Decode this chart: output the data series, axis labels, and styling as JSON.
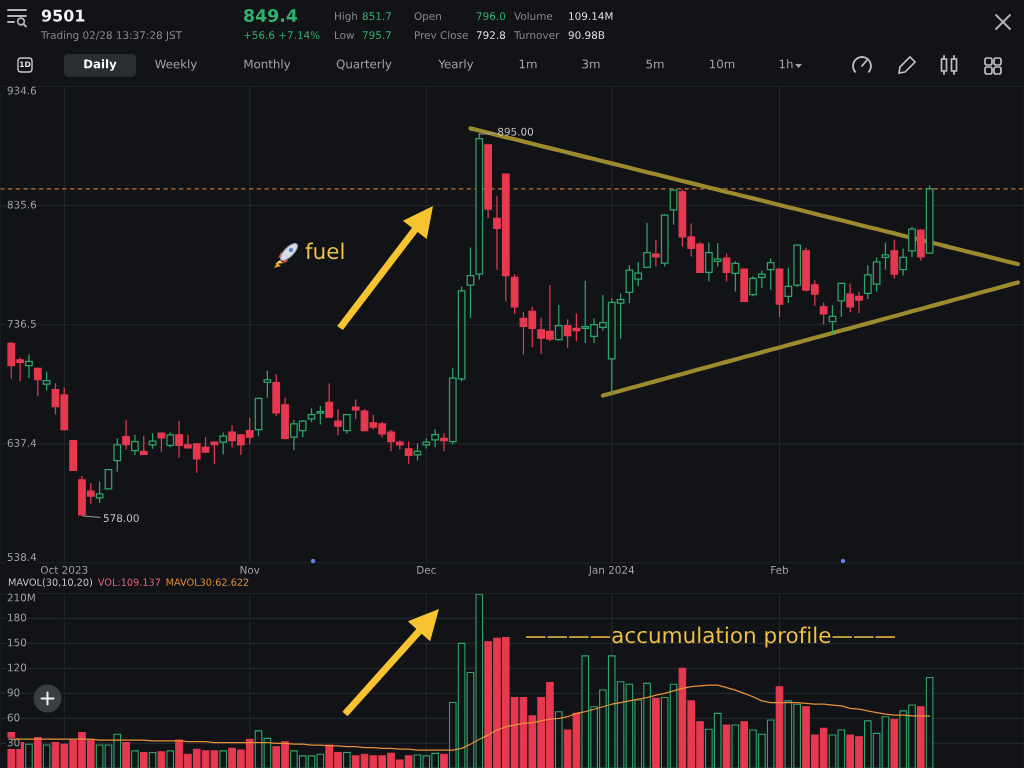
{
  "chart_data": [
    {
      "type": "other",
      "title": "9501",
      "annotations": [
        "849.4",
        "Trading 02/28 13:37:28 JST",
        "+56.6 +7.14%",
        "High",
        "851.7",
        "Low",
        "795.7",
        "Open",
        "796.0",
        "Prev Close",
        "792.8",
        "Volume",
        "109.14M",
        "Turnover",
        "90.98B",
        "1D",
        "Daily",
        "Weekly",
        "Monthly",
        "Quarterly",
        "Yearly",
        "1m",
        "3m",
        "5m",
        "10m",
        "1h"
      ]
    },
    {
      "type": "candlestick",
      "categories": [
        null,
        null,
        null,
        null,
        null,
        null,
        "Oct 2023",
        null,
        null,
        null,
        null,
        null,
        null,
        null,
        null,
        null,
        null,
        null,
        null,
        null,
        null,
        null,
        null,
        null,
        null,
        null,
        null,
        "Nov",
        null,
        null,
        null,
        null,
        null,
        null,
        null,
        null,
        null,
        null,
        null,
        null,
        null,
        null,
        null,
        null,
        null,
        null,
        null,
        "Dec",
        null,
        null,
        null,
        null,
        null,
        null,
        null,
        null,
        null,
        null,
        null,
        null,
        null,
        null,
        null,
        null,
        null,
        null,
        null,
        null,
        "Jan 2024",
        null,
        null,
        null,
        null,
        null,
        null,
        null,
        null,
        null,
        null,
        null,
        null,
        null,
        null,
        null,
        null,
        null,
        null,
        "Feb",
        null,
        null,
        null,
        null,
        null,
        null,
        null,
        null,
        null,
        null,
        null,
        null,
        null,
        null,
        null,
        null,
        null,
        null,
        null,
        null,
        null,
        null,
        null,
        null,
        null,
        null,
        null
      ],
      "ohlc": [
        [
          721.0,
          721.6,
          692.2,
          702.5
        ],
        [
          707.2,
          708.8,
          690.0,
          705.2
        ],
        [
          702.5,
          711.3,
          692.8,
          706.1
        ],
        [
          700.2,
          700.2,
          677.6,
          690.8
        ],
        [
          687.2,
          696.9,
          682.3,
          690.0
        ],
        [
          682.5,
          687.2,
          662.3,
          668.4
        ],
        [
          678.1,
          683.7,
          649.3,
          649.3
        ],
        [
          640.2,
          640.2,
          615.3,
          615.3
        ],
        [
          607.6,
          610.3,
          578.0,
          578.5
        ],
        [
          598.1,
          604.2,
          588.2,
          594.0
        ],
        [
          592.6,
          605.6,
          589.0,
          595.9
        ],
        [
          600.1,
          616.1,
          600.1,
          616.1
        ],
        [
          623.6,
          641.6,
          614.7,
          636.6
        ],
        [
          643.5,
          656.8,
          633.3,
          636.9
        ],
        [
          631.9,
          644.4,
          628.6,
          639.4
        ],
        [
          631.1,
          643.5,
          628.6,
          628.6
        ],
        [
          636.6,
          645.8,
          633.8,
          639.7
        ],
        [
          646.3,
          646.3,
          631.4,
          642.4
        ],
        [
          636.1,
          646.3,
          635.2,
          644.9
        ],
        [
          644.9,
          656.0,
          626.4,
          636.1
        ],
        [
          636.6,
          644.4,
          634.1,
          634.1
        ],
        [
          637.4,
          637.4,
          613.9,
          625.0
        ],
        [
          634.7,
          642.4,
          630.5,
          630.5
        ],
        [
          638.8,
          638.8,
          621.4,
          636.9
        ],
        [
          638.8,
          646.3,
          629.1,
          643.8
        ],
        [
          647.1,
          652.4,
          635.2,
          640.2
        ],
        [
          644.9,
          644.9,
          628.6,
          636.6
        ],
        [
          648.5,
          658.7,
          637.4,
          643.0
        ],
        [
          649.3,
          675.3,
          644.4,
          675.3
        ],
        [
          688.6,
          697.8,
          676.2,
          690.6
        ],
        [
          688.4,
          694.7,
          661.0,
          663.2
        ],
        [
          669.8,
          675.3,
          641.6,
          642.1
        ],
        [
          643.0,
          656.8,
          632.7,
          654.0
        ],
        [
          648.5,
          656.8,
          643.5,
          656.3
        ],
        [
          658.2,
          666.5,
          656.0,
          661.8
        ],
        [
          662.9,
          668.4,
          654.0,
          664.3
        ],
        [
          672.0,
          687.2,
          659.6,
          659.6
        ],
        [
          656.3,
          665.7,
          645.2,
          652.1
        ],
        [
          648.5,
          661.8,
          646.3,
          661.8
        ],
        [
          667.9,
          673.9,
          658.7,
          665.7
        ],
        [
          664.6,
          665.7,
          648.5,
          648.5
        ],
        [
          654.9,
          661.0,
          649.9,
          651.3
        ],
        [
          654.0,
          655.4,
          643.5,
          645.8
        ],
        [
          647.1,
          648.5,
          631.9,
          639.4
        ],
        [
          638.8,
          639.7,
          633.3,
          636.6
        ],
        [
          633.3,
          638.8,
          621.4,
          627.8
        ],
        [
          628.3,
          637.4,
          624.2,
          631.1
        ],
        [
          636.6,
          641.6,
          634.1,
          638.8
        ],
        [
          640.8,
          649.1,
          635.2,
          645.2
        ],
        [
          642.1,
          645.8,
          631.9,
          640.2
        ],
        [
          639.4,
          699.7,
          637.4,
          692.0
        ],
        [
          691.4,
          767.5,
          690.0,
          764.7
        ],
        [
          769.4,
          800.1,
          742.6,
          777.2
        ],
        [
          778.6,
          895.0,
          774.4,
          891.2
        ],
        [
          885.9,
          886.5,
          825.6,
          832.5
        ],
        [
          824.8,
          843.0,
          782.7,
          816.5
        ],
        [
          861.6,
          861.6,
          756.4,
          777.2
        ],
        [
          775.8,
          778.0,
          745.9,
          751.4
        ],
        [
          741.8,
          746.7,
          712.2,
          735.1
        ],
        [
          747.6,
          750.9,
          718.2,
          733.5
        ],
        [
          732.3,
          741.8,
          712.7,
          725.4
        ],
        [
          731.0,
          768.9,
          723.2,
          724.6
        ],
        [
          724.0,
          752.3,
          724.0,
          735.7
        ],
        [
          735.7,
          740.4,
          717.7,
          727.4
        ],
        [
          733.5,
          745.4,
          723.2,
          731.5
        ],
        [
          733.5,
          772.5,
          721.8,
          734.8
        ],
        [
          726.8,
          741.2,
          721.8,
          736.5
        ],
        [
          734.3,
          760.6,
          732.1,
          738.2
        ],
        [
          708.0,
          757.8,
          678.9,
          755.0
        ],
        [
          754.5,
          762.0,
          725.2,
          757.3
        ],
        [
          763.3,
          785.5,
          755.0,
          781.9
        ],
        [
          774.4,
          788.2,
          768.9,
          779.4
        ],
        [
          784.1,
          820.6,
          784.1,
          796.5
        ],
        [
          795.2,
          806.2,
          785.5,
          792.9
        ],
        [
          787.7,
          827.5,
          785.5,
          827.5
        ],
        [
          832.0,
          848.3,
          820.1,
          848.3
        ],
        [
          846.9,
          848.3,
          802.1,
          809.5
        ],
        [
          809.5,
          820.1,
          793.8,
          799.9
        ],
        [
          803.5,
          804.8,
          779.9,
          779.9
        ],
        [
          779.9,
          804.3,
          773.0,
          796.5
        ],
        [
          789.1,
          804.0,
          785.5,
          791.0
        ],
        [
          791.8,
          795.2,
          773.0,
          779.9
        ],
        [
          779.1,
          788.8,
          764.7,
          787.4
        ],
        [
          782.7,
          782.7,
          755.9,
          755.9
        ],
        [
          761.4,
          776.3,
          760.6,
          775.0
        ],
        [
          775.8,
          780.8,
          767.5,
          778.6
        ],
        [
          782.2,
          791.0,
          766.1,
          788.2
        ],
        [
          782.7,
          783.3,
          743.4,
          753.7
        ],
        [
          760.0,
          783.3,
          755.0,
          768.3
        ],
        [
          769.4,
          802.6,
          768.3,
          802.6
        ],
        [
          797.9,
          799.9,
          764.7,
          765.3
        ],
        [
          769.7,
          773.0,
          752.8,
          762.0
        ],
        [
          751.4,
          754.2,
          737.1,
          745.4
        ],
        [
          739.0,
          752.3,
          729.3,
          743.4
        ],
        [
          756.4,
          770.8,
          743.4,
          770.8
        ],
        [
          762.0,
          770.3,
          747.6,
          751.4
        ],
        [
          760.0,
          763.3,
          746.7,
          757.0
        ],
        [
          762.5,
          785.5,
          758.4,
          778.0
        ],
        [
          770.3,
          791.8,
          764.7,
          788.8
        ],
        [
          792.4,
          804.3,
          782.7,
          794.6
        ],
        [
          797.9,
          806.8,
          775.2,
          778.6
        ],
        [
          782.2,
          799.3,
          778.0,
          792.4
        ],
        [
          797.9,
          817.3,
          793.2,
          815.9
        ],
        [
          815.1,
          815.1,
          790.2,
          792.8
        ],
        [
          796.0,
          851.7,
          795.7,
          849.4
        ],
        null,
        null,
        null,
        null,
        null,
        null,
        null,
        null,
        null,
        null
      ],
      "colors": [
        "#e63950",
        "#e63950",
        "#2ea66b",
        "#e63950",
        "#2ea66b",
        "#e63950",
        "#e63950",
        "#e63950",
        "#e63950",
        "#e63950",
        "#2ea66b",
        "#2ea66b",
        "#2ea66b",
        "#e63950",
        "#2ea66b",
        "#e63950",
        "#2ea66b",
        "#e63950",
        "#2ea66b",
        "#e63950",
        "#e63950",
        "#e63950",
        "#e63950",
        "#e63950",
        "#2ea66b",
        "#e63950",
        "#e63950",
        "#e63950",
        "#2ea66b",
        "#2ea66b",
        "#e63950",
        "#e63950",
        "#2ea66b",
        "#2ea66b",
        "#2ea66b",
        "#2ea66b",
        "#e63950",
        "#e63950",
        "#2ea66b",
        "#e63950",
        "#e63950",
        "#e63950",
        "#e63950",
        "#e63950",
        "#e63950",
        "#e63950",
        "#2ea66b",
        "#2ea66b",
        "#2ea66b",
        "#e63950",
        "#2ea66b",
        "#2ea66b",
        "#2ea66b",
        "#2ea66b",
        "#e63950",
        "#e63950",
        "#e63950",
        "#e63950",
        "#e63950",
        "#e63950",
        "#e63950",
        "#e63950",
        "#2ea66b",
        "#e63950",
        "#e63950",
        "#2ea66b",
        "#2ea66b",
        "#2ea66b",
        "#2ea66b",
        "#2ea66b",
        "#2ea66b",
        "#2ea66b",
        "#2ea66b",
        "#e63950",
        "#2ea66b",
        "#2ea66b",
        "#e63950",
        "#e63950",
        "#e63950",
        "#2ea66b",
        "#2ea66b",
        "#e63950",
        "#2ea66b",
        "#e63950",
        "#2ea66b",
        "#2ea66b",
        "#2ea66b",
        "#e63950",
        "#2ea66b",
        "#2ea66b",
        "#e63950",
        "#e63950",
        "#e63950",
        "#2ea66b",
        "#2ea66b",
        "#e63950",
        "#e63950",
        "#2ea66b",
        "#2ea66b",
        "#2ea66b",
        "#e63950",
        "#2ea66b",
        "#2ea66b",
        "#e63950",
        "#2ea66b",
        null,
        null,
        null,
        null,
        null,
        null,
        null,
        null,
        null,
        null
      ],
      "series": [
        {
          "type": "line",
          "color": "#9c8a2f",
          "values": [
            null,
            null,
            null,
            null,
            null,
            null,
            null,
            null,
            null,
            null,
            null,
            null,
            null,
            null,
            null,
            null,
            null,
            null,
            null,
            null,
            null,
            null,
            null,
            null,
            null,
            null,
            null,
            null,
            null,
            null,
            null,
            null,
            null,
            null,
            null,
            null,
            null,
            null,
            null,
            null,
            null,
            null,
            null,
            null,
            null,
            null,
            null,
            null,
            null,
            null,
            null,
            null,
            899.7,
            897.9,
            896.1,
            894.2,
            892.4,
            890.6,
            888.8,
            887.0,
            885.1,
            883.3,
            881.5,
            879.7,
            877.9,
            876.0,
            874.2,
            872.4,
            870.6,
            868.8,
            867.0,
            865.1,
            863.3,
            861.5,
            859.7,
            857.9,
            856.0,
            854.2,
            852.4,
            850.6,
            848.8,
            846.9,
            845.1,
            843.3,
            841.5,
            839.7,
            837.8,
            836.0,
            834.2,
            832.4,
            830.6,
            828.7,
            826.9,
            825.1,
            823.3,
            821.5,
            819.6,
            817.8,
            816.0,
            814.2,
            812.4,
            810.5,
            808.7,
            806.9,
            805.1,
            803.3,
            801.4,
            799.6,
            797.8,
            796.0,
            794.2,
            792.3,
            790.5,
            788.7,
            786.9
          ]
        },
        {
          "type": "line",
          "color": "#9c8a2f",
          "values": [
            null,
            null,
            null,
            null,
            null,
            null,
            null,
            null,
            null,
            null,
            null,
            null,
            null,
            null,
            null,
            null,
            null,
            null,
            null,
            null,
            null,
            null,
            null,
            null,
            null,
            null,
            null,
            null,
            null,
            null,
            null,
            null,
            null,
            null,
            null,
            null,
            null,
            null,
            null,
            null,
            null,
            null,
            null,
            null,
            null,
            null,
            null,
            null,
            null,
            null,
            null,
            null,
            null,
            null,
            null,
            null,
            null,
            null,
            null,
            null,
            null,
            null,
            null,
            null,
            null,
            null,
            null,
            677.6,
            679.6,
            681.6,
            683.6,
            685.6,
            687.6,
            689.6,
            691.6,
            693.6,
            695.6,
            697.6,
            699.6,
            701.6,
            703.6,
            705.6,
            707.6,
            709.6,
            711.6,
            713.6,
            715.6,
            717.6,
            719.6,
            721.6,
            723.6,
            725.6,
            727.6,
            729.6,
            731.6,
            733.6,
            735.6,
            737.6,
            739.6,
            741.6,
            743.6,
            745.6,
            747.6,
            749.6,
            751.6,
            753.6,
            755.6,
            757.6,
            759.6,
            761.6,
            763.6,
            765.6,
            767.6,
            769.6,
            771.6
          ]
        }
      ],
      "ylim": [
        538.4,
        934.6
      ],
      "yticks": [
        934.6,
        835.6,
        736.5,
        637.4,
        538.4
      ],
      "grid": true,
      "ref_lines": [
        {
          "axis": "y",
          "value": 849.4,
          "color": "#c9703b",
          "line_style": "dashed"
        }
      ],
      "annotations": [
        {
          "text": "895.00",
          "y": 895.0
        },
        "578.00",
        "fuel"
      ]
    },
    {
      "type": "bar",
      "title": "MAVOL(30,10,20)",
      "categories": [
        null,
        null,
        null,
        null,
        null,
        null,
        null,
        null,
        null,
        null,
        null,
        null,
        null,
        null,
        null,
        null,
        null,
        null,
        null,
        null,
        null,
        null,
        null,
        null,
        null,
        null,
        null,
        null,
        null,
        null,
        null,
        null,
        null,
        null,
        null,
        null,
        null,
        null,
        null,
        null,
        null,
        null,
        null,
        null,
        null,
        null,
        null,
        null,
        null,
        null,
        null,
        null,
        null,
        null,
        null,
        null,
        null,
        null,
        null,
        null,
        null,
        null,
        null,
        null,
        null,
        null,
        null,
        null,
        null,
        null,
        null,
        null,
        null,
        null,
        null,
        null,
        null,
        null,
        null,
        null,
        null,
        null,
        null,
        null,
        null,
        null,
        null,
        null,
        null,
        null,
        null,
        null,
        null,
        null,
        null,
        null,
        null,
        null,
        null,
        null,
        null,
        null,
        null,
        null,
        null,
        null,
        null,
        null,
        null,
        null,
        null,
        null,
        null,
        null,
        null
      ],
      "series": [
        {
          "type": "bar",
          "colors": [
            "#e63950",
            "#e63950",
            "#2ea66b",
            "#e63950",
            "#2ea66b",
            "#e63950",
            "#e63950",
            "#e63950",
            "#e63950",
            "#e63950",
            "#2ea66b",
            "#2ea66b",
            "#2ea66b",
            "#e63950",
            "#2ea66b",
            "#e63950",
            "#2ea66b",
            "#e63950",
            "#2ea66b",
            "#e63950",
            "#e63950",
            "#e63950",
            "#e63950",
            "#e63950",
            "#2ea66b",
            "#e63950",
            "#e63950",
            "#e63950",
            "#2ea66b",
            "#2ea66b",
            "#e63950",
            "#e63950",
            "#2ea66b",
            "#2ea66b",
            "#2ea66b",
            "#2ea66b",
            "#e63950",
            "#e63950",
            "#2ea66b",
            "#e63950",
            "#e63950",
            "#e63950",
            "#e63950",
            "#e63950",
            "#e63950",
            "#e63950",
            "#2ea66b",
            "#2ea66b",
            "#2ea66b",
            "#e63950",
            "#2ea66b",
            "#2ea66b",
            "#2ea66b",
            "#2ea66b",
            "#e63950",
            "#e63950",
            "#e63950",
            "#e63950",
            "#e63950",
            "#e63950",
            "#e63950",
            "#e63950",
            "#2ea66b",
            "#e63950",
            "#e63950",
            "#2ea66b",
            "#2ea66b",
            "#2ea66b",
            "#2ea66b",
            "#2ea66b",
            "#2ea66b",
            "#2ea66b",
            "#2ea66b",
            "#e63950",
            "#2ea66b",
            "#2ea66b",
            "#e63950",
            "#e63950",
            "#e63950",
            "#2ea66b",
            "#2ea66b",
            "#e63950",
            "#2ea66b",
            "#e63950",
            "#2ea66b",
            "#2ea66b",
            "#2ea66b",
            "#e63950",
            "#2ea66b",
            "#2ea66b",
            "#e63950",
            "#e63950",
            "#e63950",
            "#2ea66b",
            "#2ea66b",
            "#e63950",
            "#e63950",
            "#2ea66b",
            "#2ea66b",
            "#2ea66b",
            "#e63950",
            "#2ea66b",
            "#2ea66b",
            "#e63950",
            "#2ea66b",
            null,
            null,
            null,
            null,
            null,
            null,
            null,
            null,
            null,
            null
          ],
          "values": [
            43,
            31,
            29,
            37,
            28,
            31,
            29,
            34,
            43,
            34,
            28,
            28,
            41,
            31,
            21,
            19,
            19,
            20,
            21,
            34,
            17,
            23,
            21,
            21,
            21,
            24,
            22,
            35,
            45,
            36,
            26,
            32,
            21,
            15,
            15,
            17,
            28,
            19,
            19,
            15,
            17,
            15,
            15,
            18,
            10,
            15,
            16,
            15,
            18,
            17,
            79,
            150,
            115,
            209,
            152,
            156,
            157,
            85,
            85,
            63,
            85,
            103,
            68,
            46,
            66,
            135,
            74,
            94,
            135,
            104,
            101,
            82,
            102,
            84,
            85,
            101,
            120,
            81,
            56,
            47,
            66,
            52,
            52,
            56,
            46,
            41,
            58,
            98,
            81,
            77,
            74,
            40,
            48,
            40,
            46,
            40,
            38,
            57,
            42,
            62,
            59,
            69,
            76,
            74,
            109.137,
            null,
            null,
            null,
            null,
            null,
            null,
            null,
            null,
            null,
            null
          ]
        },
        {
          "type": "line",
          "color": "#e8913a",
          "values": [
            35,
            35,
            35,
            35,
            35,
            35,
            35,
            35,
            35,
            35,
            34,
            34,
            34,
            34,
            34,
            34,
            33,
            33,
            33,
            33,
            32,
            32,
            32,
            31,
            31,
            31,
            31,
            31,
            31,
            31,
            30,
            30,
            29,
            29,
            28,
            28,
            27,
            27,
            26,
            26,
            25,
            25,
            24,
            24,
            23,
            23,
            22,
            22,
            22,
            22,
            22,
            24,
            29,
            35,
            40,
            46,
            50,
            52,
            54,
            55,
            57,
            59,
            60,
            62,
            66,
            68,
            71,
            74,
            77,
            79,
            81,
            83,
            85,
            88,
            90,
            93,
            96,
            98,
            99,
            100,
            100,
            97,
            94,
            90,
            86,
            81,
            79,
            79,
            79,
            79,
            78,
            77,
            77,
            76,
            75,
            72,
            71,
            69,
            67,
            65,
            64,
            64,
            63,
            63,
            62.622,
            null,
            null,
            null,
            null,
            null,
            null,
            null,
            null,
            null,
            null
          ]
        }
      ],
      "ylim": [
        0,
        210
      ],
      "yticks": [
        {
          "value": 210,
          "label": "210M"
        },
        180,
        150,
        120,
        90,
        60,
        30
      ],
      "grid": true,
      "tick_labels": "y",
      "annotations": [
        "VOL:109.137",
        "MAVOL30:62.622",
        "————accumulation profile———"
      ]
    }
  ]
}
